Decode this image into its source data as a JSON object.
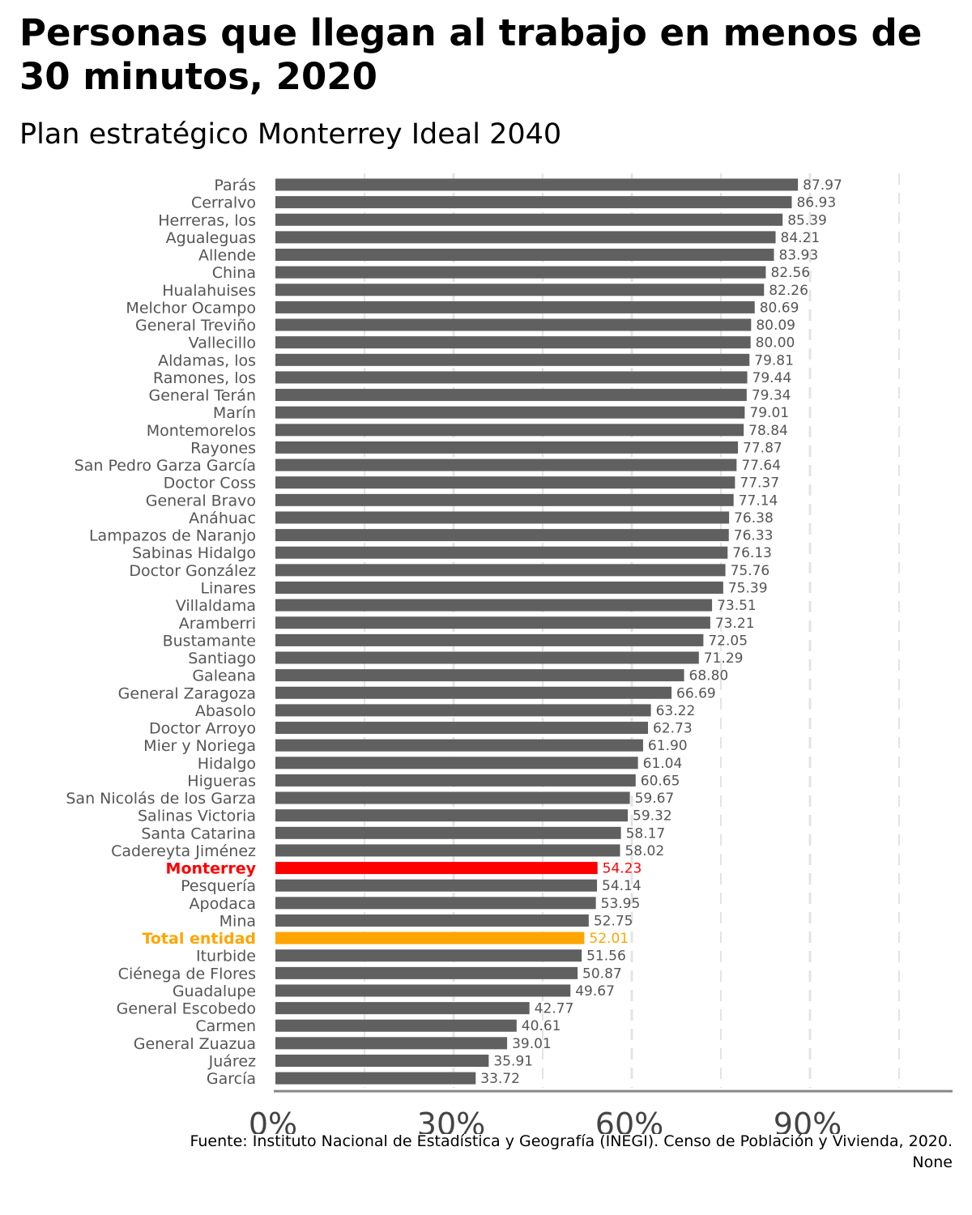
{
  "chart_data": {
    "type": "bar",
    "orientation": "horizontal",
    "title": "Personas que llegan al trabajo en menos de 30 minutos, 2020",
    "subtitle": "Plan estratégico Monterrey Ideal 2040",
    "caption": "Fuente: Instituto Nacional de Estadística y Geografía (INEGI). Censo de Población y Vivienda, 2020. None",
    "xlabel": "",
    "ylabel": "",
    "xlim": [
      0,
      114
    ],
    "x_ticks": [
      0,
      30,
      60,
      90
    ],
    "x_tick_labels": [
      "0%",
      "30%",
      "60%",
      "90%"
    ],
    "grid": "vertical dashed",
    "categories": [
      "Parás",
      "Cerralvo",
      "Herreras, los",
      "Agualeguas",
      "Allende",
      "China",
      "Hualahuises",
      "Melchor Ocampo",
      "General Treviño",
      "Vallecillo",
      "Aldamas, los",
      "Ramones, los",
      "General Terán",
      "Marín",
      "Montemorelos",
      "Rayones",
      "San Pedro Garza García",
      "Doctor Coss",
      "General Bravo",
      "Anáhuac",
      "Lampazos de Naranjo",
      "Sabinas Hidalgo",
      "Doctor González",
      "Linares",
      "Villaldama",
      "Aramberri",
      "Bustamante",
      "Santiago",
      "Galeana",
      "General Zaragoza",
      "Abasolo",
      "Doctor Arroyo",
      "Mier y Noriega",
      "Hidalgo",
      "Higueras",
      "San Nicolás de los Garza",
      "Salinas Victoria",
      "Santa Catarina",
      "Cadereyta Jiménez",
      "Monterrey",
      "Pesquería",
      "Apodaca",
      "Mina",
      "Total entidad",
      "Iturbide",
      "Ciénega de Flores",
      "Guadalupe",
      "General Escobedo",
      "Carmen",
      "General Zuazua",
      "Juárez",
      "García"
    ],
    "values": [
      87.97,
      86.93,
      85.39,
      84.21,
      83.93,
      82.56,
      82.26,
      80.69,
      80.09,
      80.0,
      79.81,
      79.44,
      79.34,
      79.01,
      78.84,
      77.87,
      77.64,
      77.37,
      77.14,
      76.38,
      76.33,
      76.13,
      75.76,
      75.39,
      73.51,
      73.21,
      72.05,
      71.29,
      68.8,
      66.69,
      63.22,
      62.73,
      61.9,
      61.04,
      60.65,
      59.67,
      59.32,
      58.17,
      58.02,
      54.23,
      54.14,
      53.95,
      52.75,
      52.01,
      51.56,
      50.87,
      49.67,
      42.77,
      40.61,
      39.01,
      35.91,
      33.72
    ],
    "value_labels": [
      "87.97",
      "86.93",
      "85.39",
      "84.21",
      "83.93",
      "82.56",
      "82.26",
      "80.69",
      "80.09",
      "80.00",
      "79.81",
      "79.44",
      "79.34",
      "79.01",
      "78.84",
      "77.87",
      "77.64",
      "77.37",
      "77.14",
      "76.38",
      "76.33",
      "76.13",
      "75.76",
      "75.39",
      "73.51",
      "73.21",
      "72.05",
      "71.29",
      "68.80",
      "66.69",
      "63.22",
      "62.73",
      "61.90",
      "61.04",
      "60.65",
      "59.67",
      "59.32",
      "58.17",
      "58.02",
      "54.23",
      "54.14",
      "53.95",
      "52.75",
      "52.01",
      "51.56",
      "50.87",
      "49.67",
      "42.77",
      "40.61",
      "39.01",
      "35.91",
      "33.72"
    ],
    "highlights": {
      "Monterrey": "#ff0000",
      "Total entidad": "#ffa500"
    },
    "colors": {
      "default_bar": "#606060",
      "default_label": "#555555",
      "grid": "#e4e4e4",
      "axis": "#888888"
    }
  }
}
